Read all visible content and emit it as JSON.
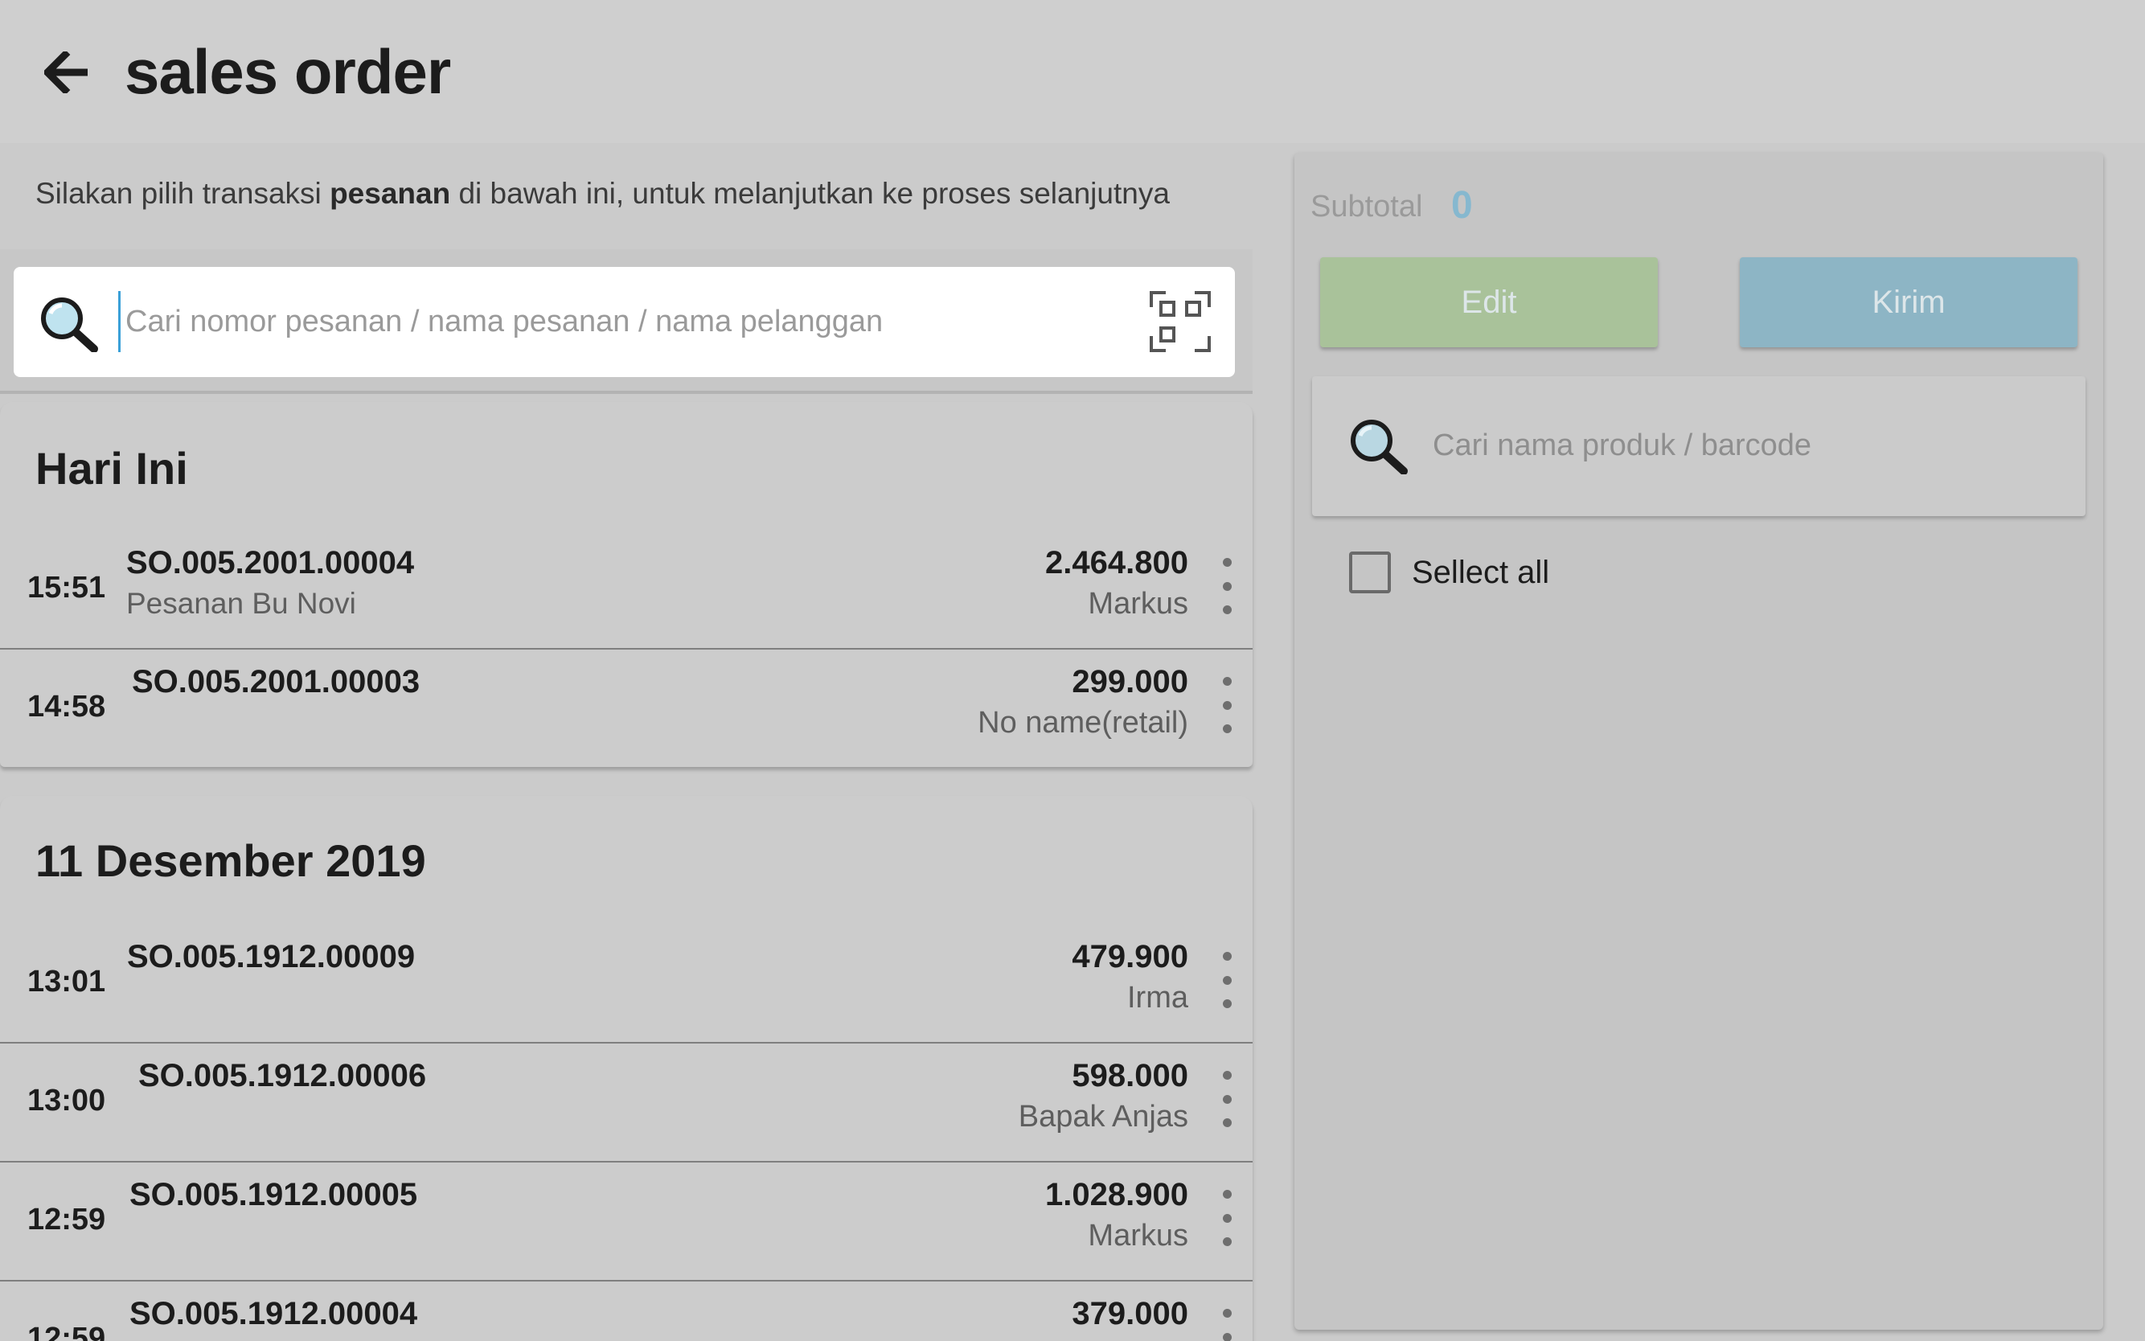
{
  "header": {
    "title": "sales order"
  },
  "instruction": {
    "before": "Silakan pilih transaksi ",
    "bold": "pesanan",
    "after": " di bawah ini, untuk melanjutkan ke proses selanjutnya"
  },
  "search": {
    "placeholder": "Cari nomor pesanan / nama pesanan / nama pelanggan",
    "value": ""
  },
  "groups": [
    {
      "title": "Hari Ini",
      "orders": [
        {
          "time": "15:51",
          "number": "SO.005.2001.00004",
          "name": "Pesanan Bu Novi",
          "amount": "2.464.800",
          "customer": "Markus"
        },
        {
          "time": "14:58",
          "number": "SO.005.2001.00003",
          "name": "",
          "amount": "299.000",
          "customer": "No name(retail)"
        }
      ]
    },
    {
      "title": "11 Desember 2019",
      "orders": [
        {
          "time": "13:01",
          "number": "SO.005.1912.00009",
          "name": "",
          "amount": "479.900",
          "customer": "Irma"
        },
        {
          "time": "13:00",
          "number": "SO.005.1912.00006",
          "name": "",
          "amount": "598.000",
          "customer": "Bapak Anjas"
        },
        {
          "time": "12:59",
          "number": "SO.005.1912.00005",
          "name": "",
          "amount": "1.028.900",
          "customer": "Markus"
        },
        {
          "time": "12:59",
          "number": "SO.005.1912.00004",
          "name": "",
          "amount": "379.000",
          "customer": ""
        }
      ]
    }
  ],
  "panel": {
    "subtotal_label": "Subtotal",
    "subtotal_value": "0",
    "edit_label": "Edit",
    "send_label": "Kirim",
    "product_search_placeholder": "Cari nama produk / barcode",
    "select_all_label": "Sellect all"
  },
  "colors": {
    "edit_button": "#a9c29a",
    "send_button": "#8db5c5",
    "subtotal_value": "#86b8cf"
  },
  "icons": {
    "back": "arrow-left-icon",
    "search": "magnifier-icon",
    "scan": "barcode-scan-icon",
    "more": "vertical-dots-icon"
  }
}
